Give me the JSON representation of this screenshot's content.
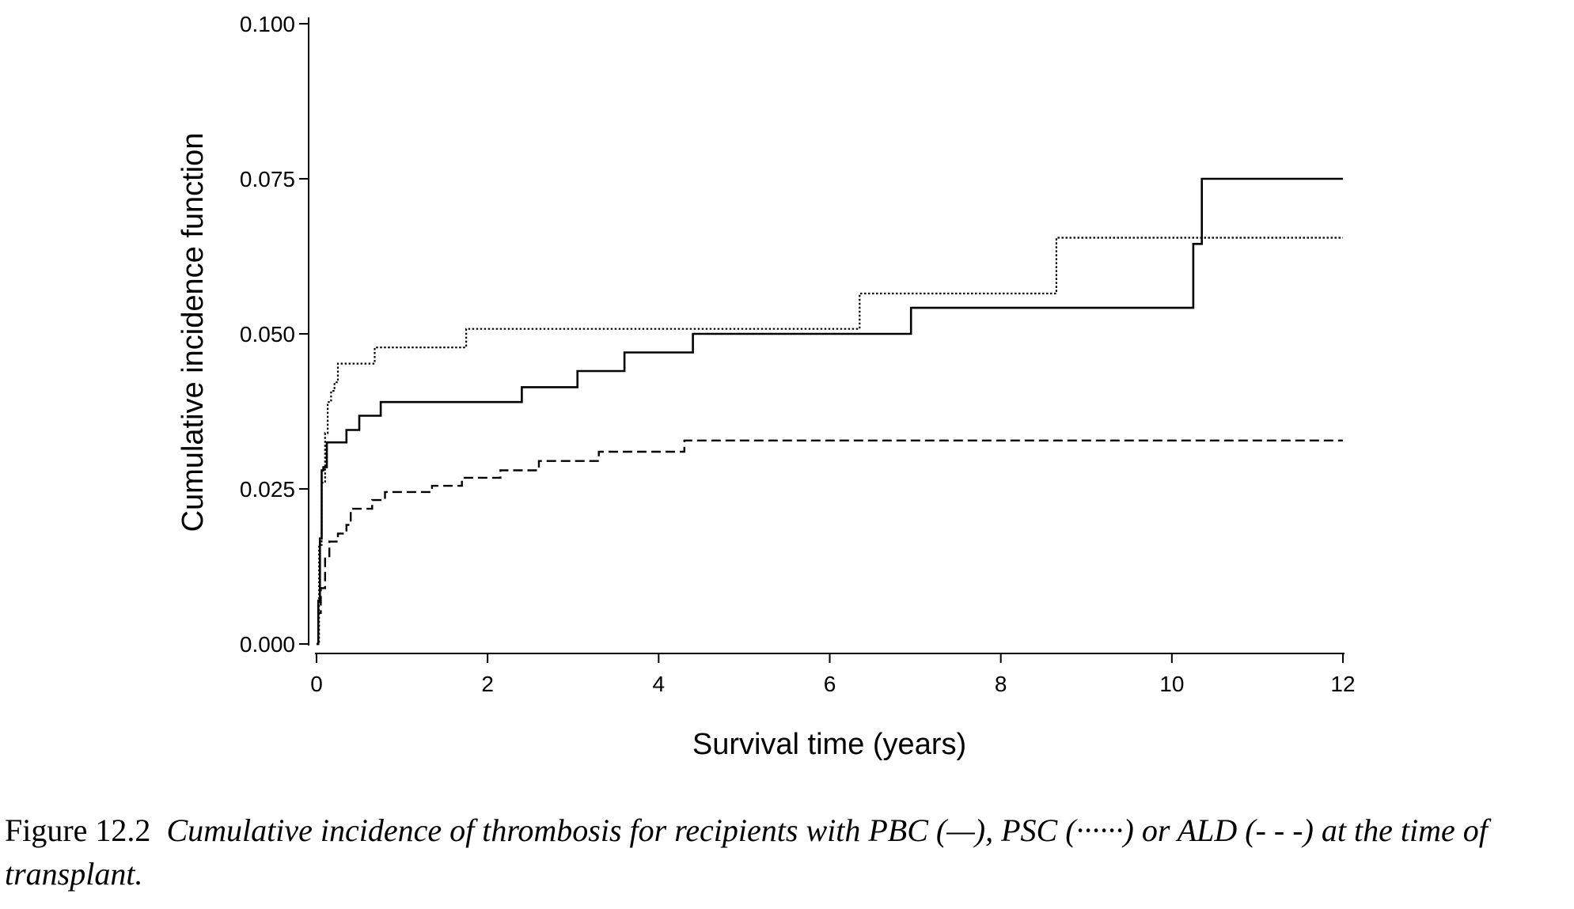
{
  "chart_data": {
    "type": "line",
    "step": true,
    "xlabel": "Survival time (years)",
    "ylabel": "Cumulative incidence function",
    "xlim": [
      0,
      12
    ],
    "ylim": [
      0,
      0.1
    ],
    "xticks": [
      "0",
      "2",
      "4",
      "6",
      "8",
      "10",
      "12"
    ],
    "yticks": [
      "0.000",
      "0.025",
      "0.050",
      "0.075",
      "0.100"
    ],
    "grid": false,
    "legend": "none",
    "series": [
      {
        "key": "PBC",
        "style": "solid",
        "x": [
          0,
          0.02,
          0.04,
          0.06,
          0.08,
          0.12,
          0.35,
          0.5,
          0.75,
          2.4,
          3.05,
          3.6,
          4.4,
          6.95,
          10.25,
          10.35,
          12
        ],
        "y": [
          0,
          0.007,
          0.017,
          0.028,
          0.0285,
          0.0325,
          0.0345,
          0.0368,
          0.039,
          0.0414,
          0.044,
          0.047,
          0.05,
          0.0542,
          0.0645,
          0.075,
          0.075
        ]
      },
      {
        "key": "PSC",
        "style": "dotted",
        "x": [
          0,
          0.03,
          0.06,
          0.1,
          0.13,
          0.17,
          0.21,
          0.25,
          0.68,
          1.75,
          6.35,
          8.65,
          12
        ],
        "y": [
          0,
          0.016,
          0.026,
          0.034,
          0.039,
          0.0408,
          0.0422,
          0.0452,
          0.0478,
          0.0508,
          0.0565,
          0.0655,
          0.0655
        ]
      },
      {
        "key": "ALD",
        "style": "dashed",
        "x": [
          0,
          0.02,
          0.05,
          0.1,
          0.15,
          0.25,
          0.35,
          0.4,
          0.65,
          0.8,
          1.35,
          1.7,
          2.15,
          2.6,
          3.3,
          4.3,
          12
        ],
        "y": [
          0,
          0.005,
          0.009,
          0.014,
          0.0165,
          0.0178,
          0.0192,
          0.0218,
          0.0232,
          0.0245,
          0.0255,
          0.0268,
          0.028,
          0.0295,
          0.031,
          0.0328,
          0.0328
        ]
      }
    ]
  },
  "caption": {
    "label": "Figure 12.2",
    "text": "Cumulative incidence of thrombosis for recipients with PBC (—), PSC (······) or ALD (- - -) at the time of transplant."
  }
}
